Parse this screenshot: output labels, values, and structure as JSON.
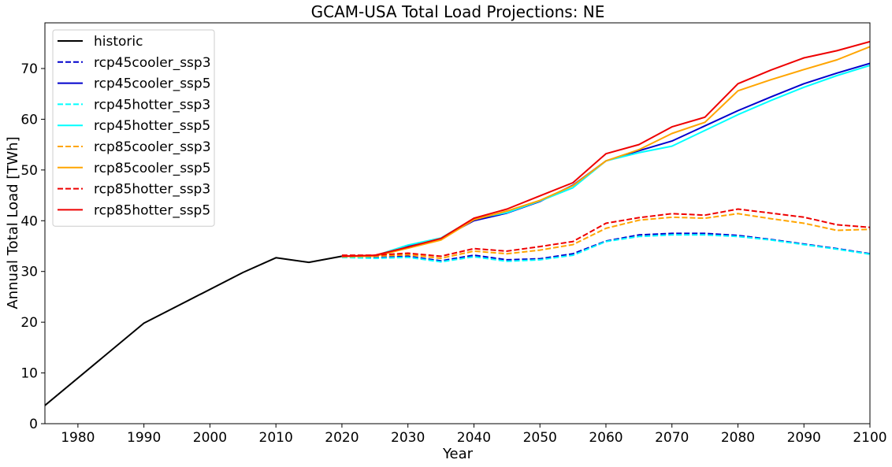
{
  "chart_data": {
    "type": "line",
    "title": "GCAM-USA Total Load Projections: NE",
    "xlabel": "Year",
    "ylabel": "Annual Total Load [TWh]",
    "xlim": [
      1975,
      2100
    ],
    "ylim": [
      0,
      79
    ],
    "xticks": [
      1980,
      1990,
      2000,
      2010,
      2020,
      2030,
      2040,
      2050,
      2060,
      2070,
      2080,
      2090,
      2100
    ],
    "yticks": [
      0,
      10,
      20,
      30,
      40,
      50,
      60,
      70
    ],
    "grid": false,
    "legend_position": "top-left",
    "series": [
      {
        "name": "historic",
        "color": "#000000",
        "dash": "solid",
        "x": [
          1975,
          1990,
          2005,
          2010,
          2015,
          2020
        ],
        "y": [
          3.6,
          19.8,
          29.8,
          32.7,
          31.8,
          33.0
        ]
      },
      {
        "name": "rcp45cooler_ssp3",
        "color": "#0000cc",
        "dash": "dashed",
        "x": [
          2020,
          2025,
          2030,
          2035,
          2040,
          2045,
          2050,
          2055,
          2060,
          2065,
          2070,
          2075,
          2080,
          2085,
          2090,
          2095,
          2100
        ],
        "y": [
          32.9,
          32.7,
          33.0,
          32.1,
          33.2,
          32.3,
          32.5,
          33.5,
          36.0,
          37.2,
          37.5,
          37.5,
          37.1,
          36.3,
          35.4,
          34.5,
          33.5
        ]
      },
      {
        "name": "rcp45cooler_ssp5",
        "color": "#0000cc",
        "dash": "solid",
        "x": [
          2020,
          2025,
          2030,
          2035,
          2040,
          2045,
          2050,
          2055,
          2060,
          2065,
          2070,
          2075,
          2080,
          2085,
          2090,
          2095,
          2100
        ],
        "y": [
          33.0,
          33.1,
          35.0,
          36.5,
          40.0,
          41.5,
          43.8,
          47.0,
          51.8,
          53.8,
          55.7,
          58.7,
          61.7,
          64.4,
          67.0,
          69.1,
          71.0
        ]
      },
      {
        "name": "rcp45hotter_ssp3",
        "color": "#00ffff",
        "dash": "dashed",
        "x": [
          2020,
          2025,
          2030,
          2035,
          2040,
          2045,
          2050,
          2055,
          2060,
          2065,
          2070,
          2075,
          2080,
          2085,
          2090,
          2095,
          2100
        ],
        "y": [
          32.8,
          32.6,
          32.8,
          31.9,
          32.9,
          32.0,
          32.3,
          33.2,
          35.9,
          36.9,
          37.2,
          37.2,
          36.9,
          36.2,
          35.3,
          34.4,
          33.4
        ]
      },
      {
        "name": "rcp45hotter_ssp5",
        "color": "#00ffff",
        "dash": "solid",
        "x": [
          2020,
          2025,
          2030,
          2035,
          2040,
          2045,
          2050,
          2055,
          2060,
          2065,
          2070,
          2075,
          2080,
          2085,
          2090,
          2095,
          2100
        ],
        "y": [
          33.0,
          33.1,
          35.2,
          36.6,
          40.4,
          41.6,
          43.9,
          46.5,
          51.8,
          53.4,
          54.7,
          57.8,
          60.9,
          63.7,
          66.3,
          68.6,
          70.6
        ]
      },
      {
        "name": "rcp85cooler_ssp3",
        "color": "#ffa500",
        "dash": "dashed",
        "x": [
          2020,
          2025,
          2030,
          2035,
          2040,
          2045,
          2050,
          2055,
          2060,
          2065,
          2070,
          2075,
          2080,
          2085,
          2090,
          2095,
          2100
        ],
        "y": [
          32.9,
          33.0,
          33.3,
          32.6,
          34.0,
          33.5,
          34.2,
          35.3,
          38.5,
          40.1,
          40.7,
          40.5,
          41.4,
          40.4,
          39.5,
          38.1,
          38.3
        ]
      },
      {
        "name": "rcp85cooler_ssp5",
        "color": "#ffa500",
        "dash": "solid",
        "x": [
          2020,
          2025,
          2030,
          2035,
          2040,
          2045,
          2050,
          2055,
          2060,
          2065,
          2070,
          2075,
          2080,
          2085,
          2090,
          2095,
          2100
        ],
        "y": [
          33.0,
          33.0,
          34.6,
          36.2,
          40.2,
          41.9,
          44.0,
          46.9,
          51.8,
          54.0,
          57.2,
          59.4,
          65.6,
          67.8,
          69.8,
          71.7,
          74.3
        ]
      },
      {
        "name": "rcp85hotter_ssp3",
        "color": "#ee0000",
        "dash": "dashed",
        "x": [
          2020,
          2025,
          2030,
          2035,
          2040,
          2045,
          2050,
          2055,
          2060,
          2065,
          2070,
          2075,
          2080,
          2085,
          2090,
          2095,
          2100
        ],
        "y": [
          33.2,
          33.2,
          33.6,
          33.0,
          34.5,
          34.0,
          34.9,
          35.9,
          39.5,
          40.6,
          41.4,
          41.1,
          42.3,
          41.5,
          40.7,
          39.2,
          38.7
        ]
      },
      {
        "name": "rcp85hotter_ssp5",
        "color": "#ee0000",
        "dash": "solid",
        "x": [
          2020,
          2025,
          2030,
          2035,
          2040,
          2045,
          2050,
          2055,
          2060,
          2065,
          2070,
          2075,
          2080,
          2085,
          2090,
          2095,
          2100
        ],
        "y": [
          33.0,
          33.2,
          34.8,
          36.5,
          40.5,
          42.3,
          44.9,
          47.5,
          53.2,
          55.0,
          58.5,
          60.4,
          67.0,
          69.7,
          72.1,
          73.5,
          75.3
        ]
      }
    ]
  }
}
